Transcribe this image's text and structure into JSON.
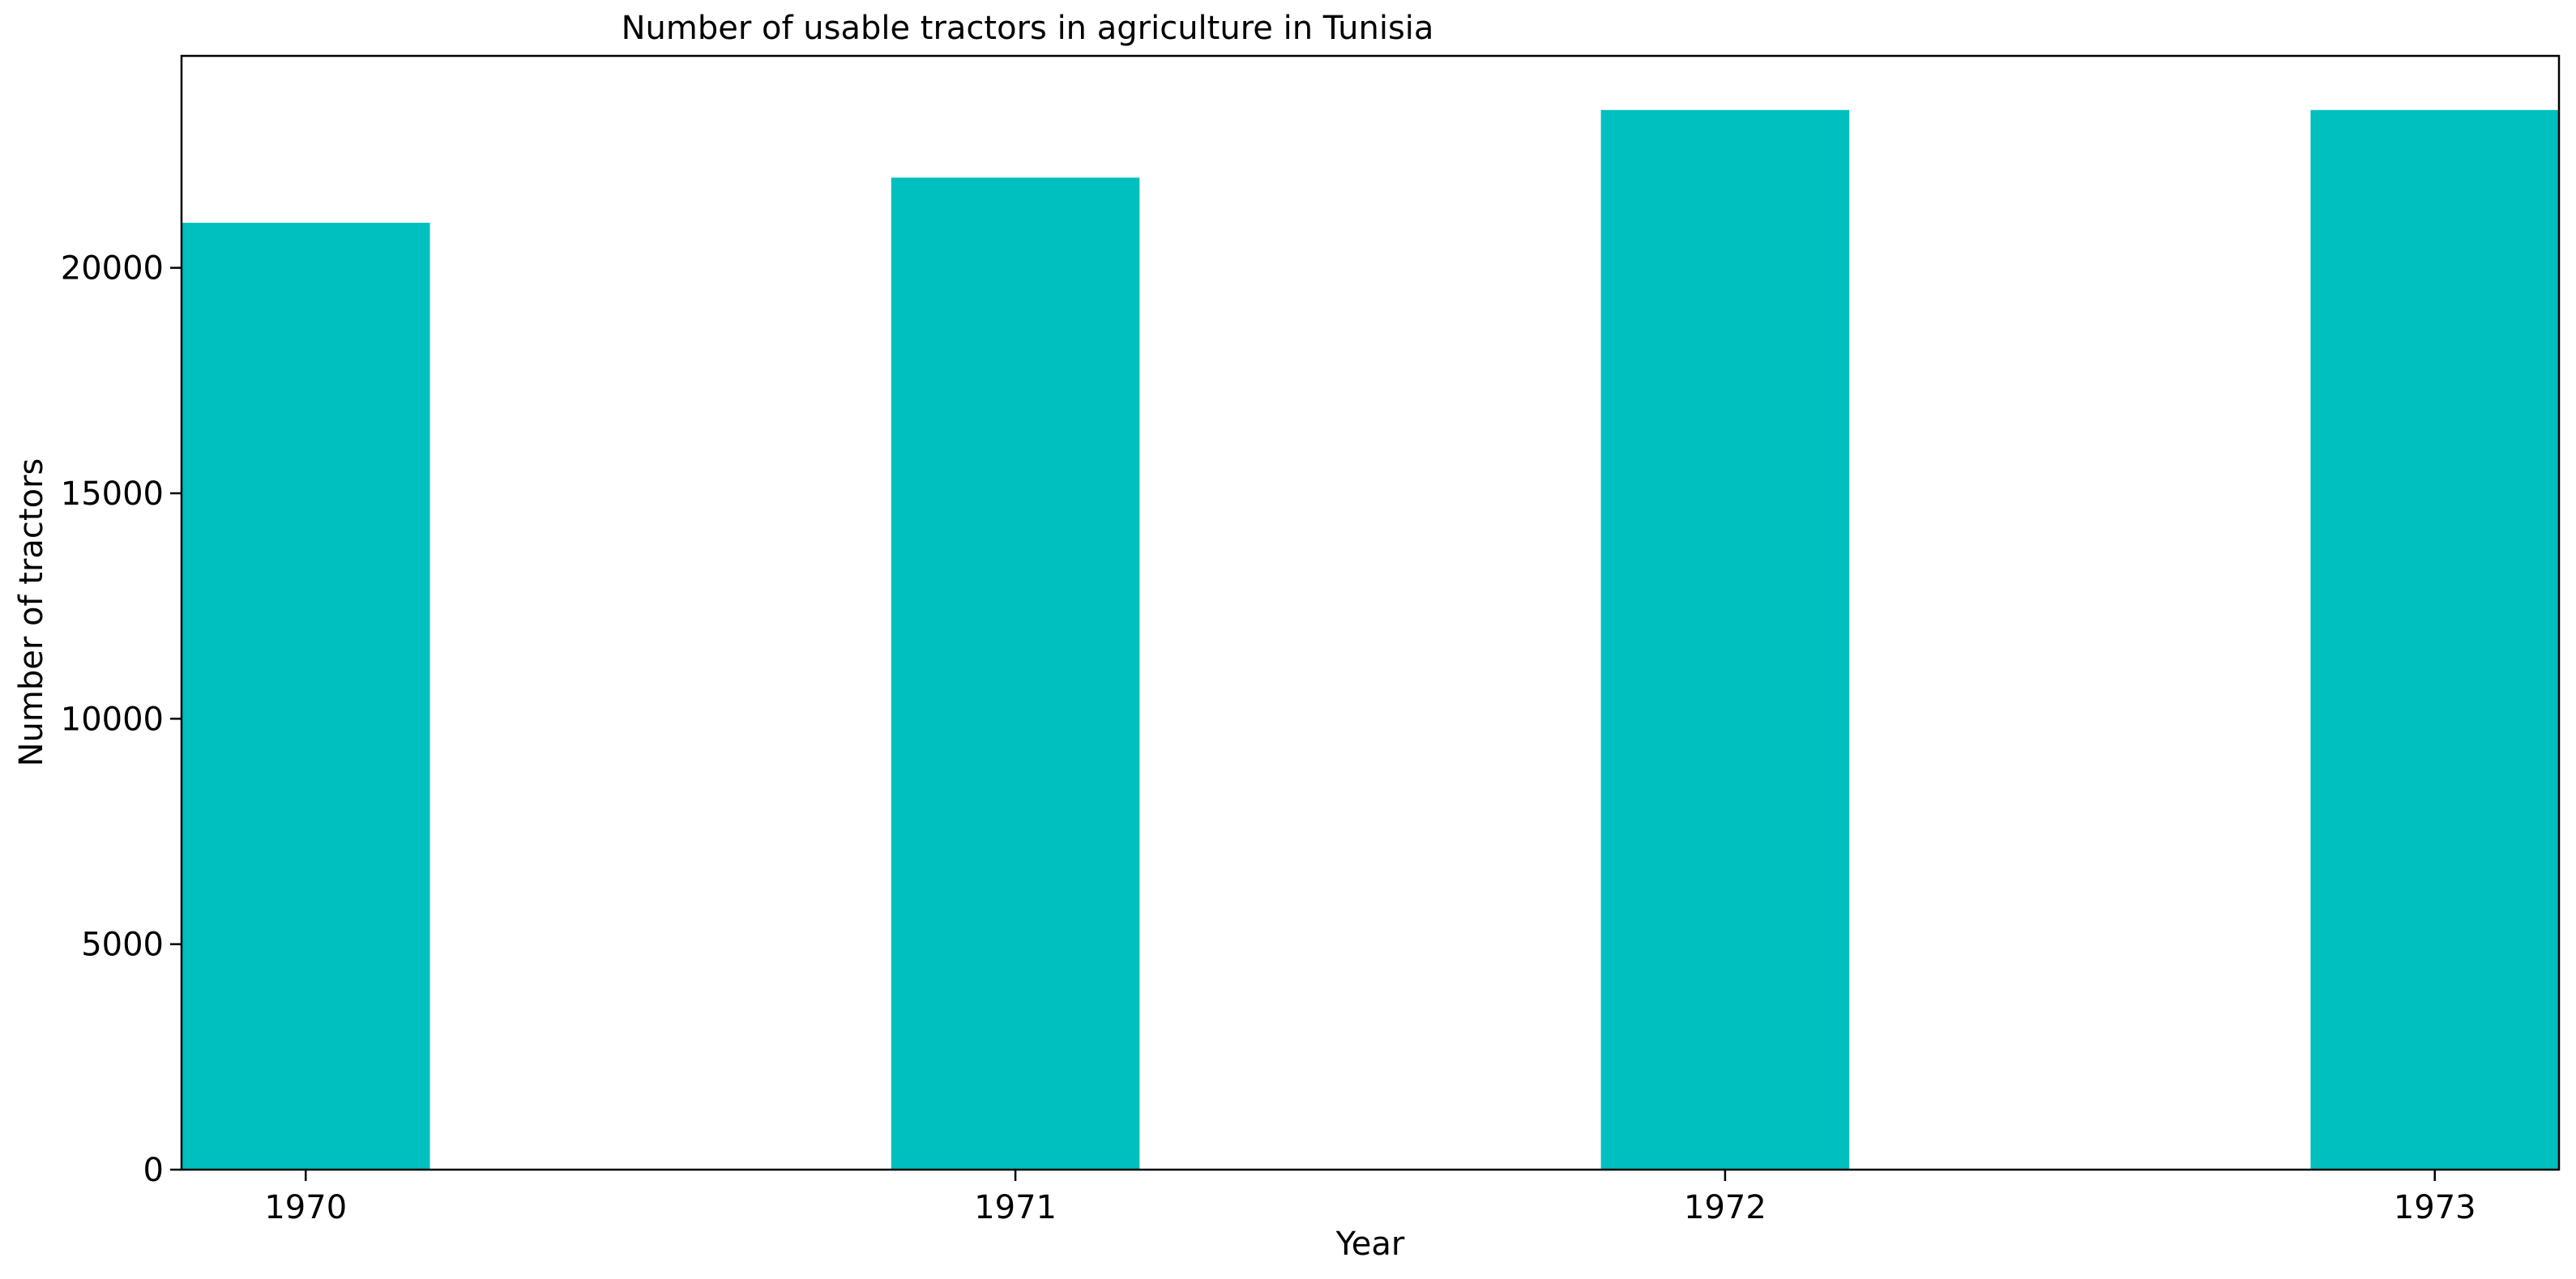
{
  "chart_data": {
    "type": "bar",
    "title": "Number of usable tractors in agriculture in Tunisia",
    "xlabel": "Year",
    "ylabel": "Number of tractors",
    "categories": [
      "1970",
      "1971",
      "1972",
      "1973"
    ],
    "values": [
      21000,
      22000,
      23500,
      23500
    ],
    "ylim": [
      0,
      24700
    ],
    "yticks": [
      0,
      5000,
      10000,
      15000,
      20000
    ],
    "ytick_labels": [
      "0",
      "5000",
      "10000",
      "15000",
      "20000"
    ],
    "grid": false,
    "legend": "none",
    "bar_color": "#00bfbf"
  }
}
